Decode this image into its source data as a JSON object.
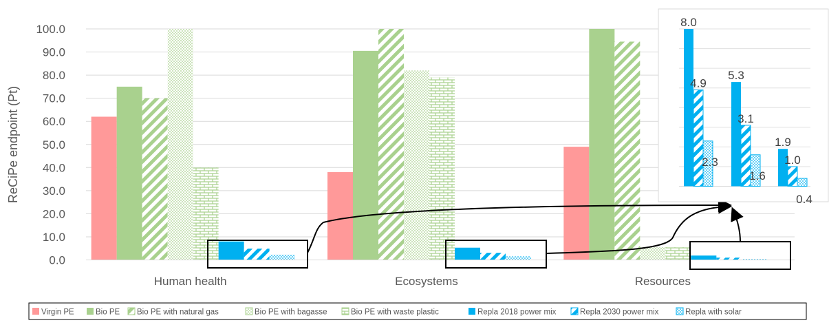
{
  "chart_data": {
    "type": "bar",
    "ylabel": "ReCiPe endpoint (Pt)",
    "ylim": [
      0,
      100
    ],
    "yticks": [
      "0.0",
      "10.0",
      "20.0",
      "30.0",
      "40.0",
      "50.0",
      "60.0",
      "70.0",
      "80.0",
      "90.0",
      "100.0"
    ],
    "categories": [
      "Human health",
      "Ecosystems",
      "Resources"
    ],
    "legend_position": "bottom",
    "grid": true,
    "series": [
      {
        "name": "Virgin PE",
        "values": [
          62,
          38,
          49
        ],
        "color": "#FF9999",
        "pattern": "solid"
      },
      {
        "name": "Bio PE",
        "values": [
          75,
          90.5,
          100
        ],
        "color": "#A9D18E",
        "pattern": "solid"
      },
      {
        "name": "Bio PE with natural gas",
        "values": [
          70,
          100,
          94.5
        ],
        "color": "#A9D18E",
        "pattern": "wide-diagonal"
      },
      {
        "name": "Bio PE with bagasse",
        "values": [
          100,
          82,
          5.5
        ],
        "color": "#A9D18E",
        "pattern": "dotted"
      },
      {
        "name": "Bio PE with waste plastic",
        "values": [
          40,
          79,
          5.5
        ],
        "color": "#A9D18E",
        "pattern": "brick"
      },
      {
        "name": "Repla 2018 power mix",
        "values": [
          8.0,
          5.3,
          1.9
        ],
        "color": "#00B0F0",
        "pattern": "solid"
      },
      {
        "name": "Repla 2030 power mix",
        "values": [
          4.9,
          3.1,
          1.0
        ],
        "color": "#00B0F0",
        "pattern": "wide-diagonal"
      },
      {
        "name": "Repla with solar",
        "values": [
          2.3,
          1.6,
          0.4
        ],
        "color": "#00B0F0",
        "pattern": "dotted"
      }
    ],
    "inset": {
      "description_series": [
        "Repla 2018 power mix",
        "Repla 2030 power mix",
        "Repla with solar"
      ],
      "ymax": 8,
      "labels": [
        [
          "8.0",
          "4.9",
          "2.3"
        ],
        [
          "5.3",
          "3.1",
          "1.6"
        ],
        [
          "1.9",
          "1.0",
          "0.4"
        ]
      ]
    }
  }
}
